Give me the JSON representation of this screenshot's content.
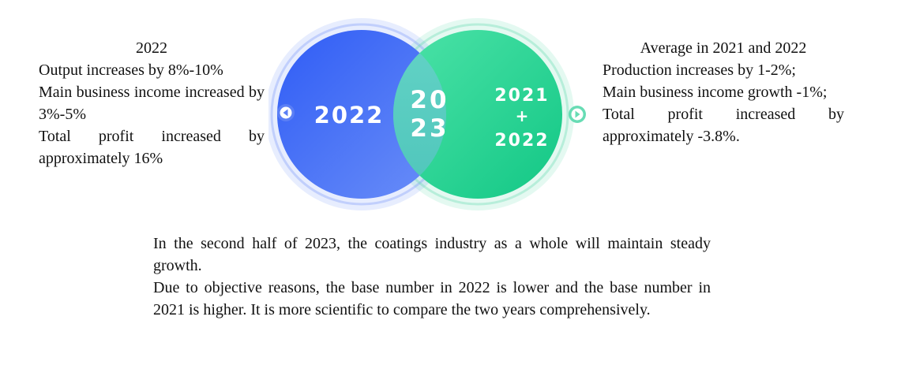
{
  "left_panel": {
    "heading": "2022",
    "lines": [
      "Output increases by 8%-10%",
      "Main business income increased by 3%-5%",
      "Total profit increased by approximately 16%"
    ]
  },
  "right_panel": {
    "heading": "Average in 2021 and 2022",
    "lines": [
      "Production increases by 1-2%;",
      "Main business income growth -1%;",
      "Total profit increased by approximately -3.8%."
    ]
  },
  "venn": {
    "left_label": "2022",
    "center_label_line1": "20",
    "center_label_line2": "23",
    "right_label_line1": "2021",
    "right_label_plus": "+",
    "right_label_line2": "2022",
    "colors": {
      "left_circle": "#3b6cf6",
      "right_circle": "#1fd08f",
      "overlap": "#5fcfc0",
      "left_arrow": "#5b7ff5",
      "right_arrow": "#67dcb4"
    }
  },
  "summary": {
    "lines": [
      "In the second half of 2023, the coatings industry as a whole will maintain steady growth.",
      "Due to objective reasons, the base number in 2022 is lower and the base number in 2021 is higher. It is more scientific to compare the two years comprehensively."
    ]
  }
}
